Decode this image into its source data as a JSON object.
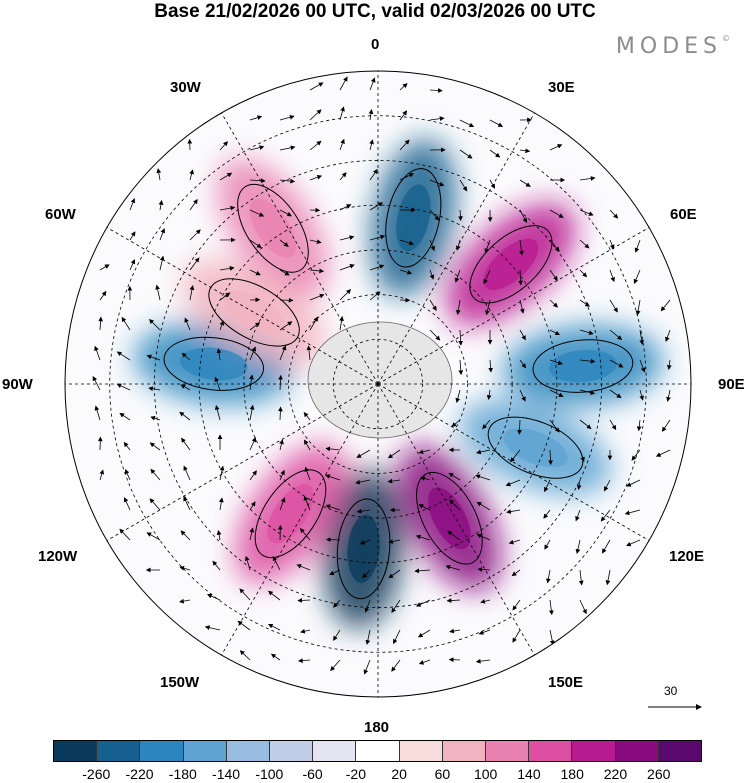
{
  "title": "Base 21/02/2026 00 UTC, valid 02/03/2026 00 UTC",
  "brand": "MODES",
  "brand_mark": "©",
  "longitude_labels": {
    "lon_0": "0",
    "lon_30e": "30E",
    "lon_60e": "60E",
    "lon_90e": "90E",
    "lon_120e": "120E",
    "lon_150e": "150E",
    "lon_180": "180",
    "lon_150w": "150W",
    "lon_120w": "120W",
    "lon_90w": "90W",
    "lon_60w": "60W",
    "lon_30w": "30W"
  },
  "reference_vector": "30",
  "colorbar": {
    "colors": [
      "#0a3a5a",
      "#15608e",
      "#2b86bd",
      "#5ea3d1",
      "#98bde0",
      "#c2cee7",
      "#e4e5f1",
      "#ffffff",
      "#f8dcdc",
      "#f2b3c0",
      "#ea82b1",
      "#dc4fa1",
      "#b81b8f",
      "#8a0a80",
      "#5a0a6e"
    ],
    "ticks": [
      "-260",
      "-220",
      "-180",
      "-140",
      "-100",
      "-60",
      "-20",
      "20",
      "60",
      "100",
      "140",
      "180",
      "220",
      "260"
    ]
  },
  "anomaly_centers": [
    {
      "id": "a1",
      "color": "#15608e",
      "lon": 12,
      "lat": -52
    },
    {
      "id": "a2",
      "color": "#b81b8f",
      "lon": 48,
      "lat": -50
    },
    {
      "id": "a3",
      "color": "#2b86bd",
      "lon": 85,
      "lat": -44
    },
    {
      "id": "a4",
      "color": "#5ea3d1",
      "lon": 112,
      "lat": -52
    },
    {
      "id": "a5",
      "color": "#8a0a80",
      "lon": 152,
      "lat": -56
    },
    {
      "id": "a6",
      "color": "#0a3a5a",
      "lon": 185,
      "lat": -53
    },
    {
      "id": "a7",
      "color": "#dc4fa1",
      "lon": 214,
      "lat": -55
    },
    {
      "id": "a8",
      "color": "#2b86bd",
      "lon": 277,
      "lat": -53
    },
    {
      "id": "a9",
      "color": "#ea82b1",
      "lon": 326,
      "lat": -48
    },
    {
      "id": "a10",
      "color": "#f2b3c0",
      "lon": 300,
      "lat": -58
    }
  ]
}
